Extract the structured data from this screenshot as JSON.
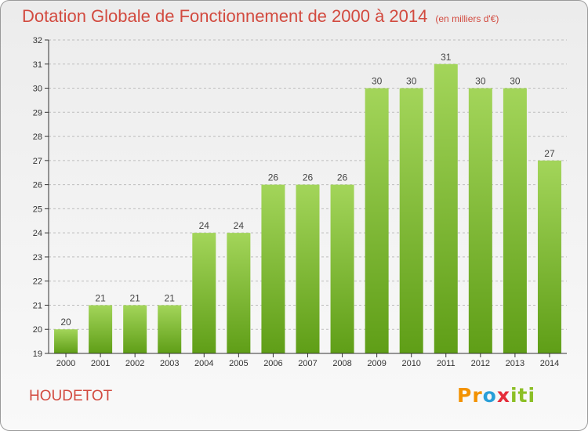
{
  "header": {
    "title": "Dotation Globale de Fonctionnement de 2000 à 2014",
    "subtitle": "(en milliers d'€)"
  },
  "commune": "HOUDETOT",
  "logo": {
    "text": "Proxiti"
  },
  "colors": {
    "title": "#d24a3f",
    "bar_light": "#a3d55a",
    "bar_dark": "#5f9e17",
    "axis": "#333333"
  },
  "chart_data": {
    "type": "bar",
    "title": "Dotation Globale de Fonctionnement de 2000 à 2014",
    "subtitle": "(en milliers d'€)",
    "xlabel": "",
    "ylabel": "",
    "categories": [
      "2000",
      "2001",
      "2002",
      "2003",
      "2004",
      "2005",
      "2006",
      "2007",
      "2008",
      "2009",
      "2010",
      "2011",
      "2012",
      "2013",
      "2014"
    ],
    "values": [
      20,
      21,
      21,
      21,
      24,
      24,
      26,
      26,
      26,
      30,
      30,
      31,
      30,
      30,
      27
    ],
    "data_labels": [
      "20",
      "21",
      "21",
      "21",
      "24",
      "24",
      "26",
      "26",
      "26",
      "30",
      "30",
      "31",
      "30",
      "30",
      "27"
    ],
    "ylim": [
      19,
      32
    ],
    "yticks": [
      "19",
      "20",
      "21",
      "22",
      "23",
      "24",
      "25",
      "26",
      "27",
      "28",
      "29",
      "30",
      "31",
      "32"
    ],
    "grid": "horizontal-dashed",
    "legend": "none"
  }
}
